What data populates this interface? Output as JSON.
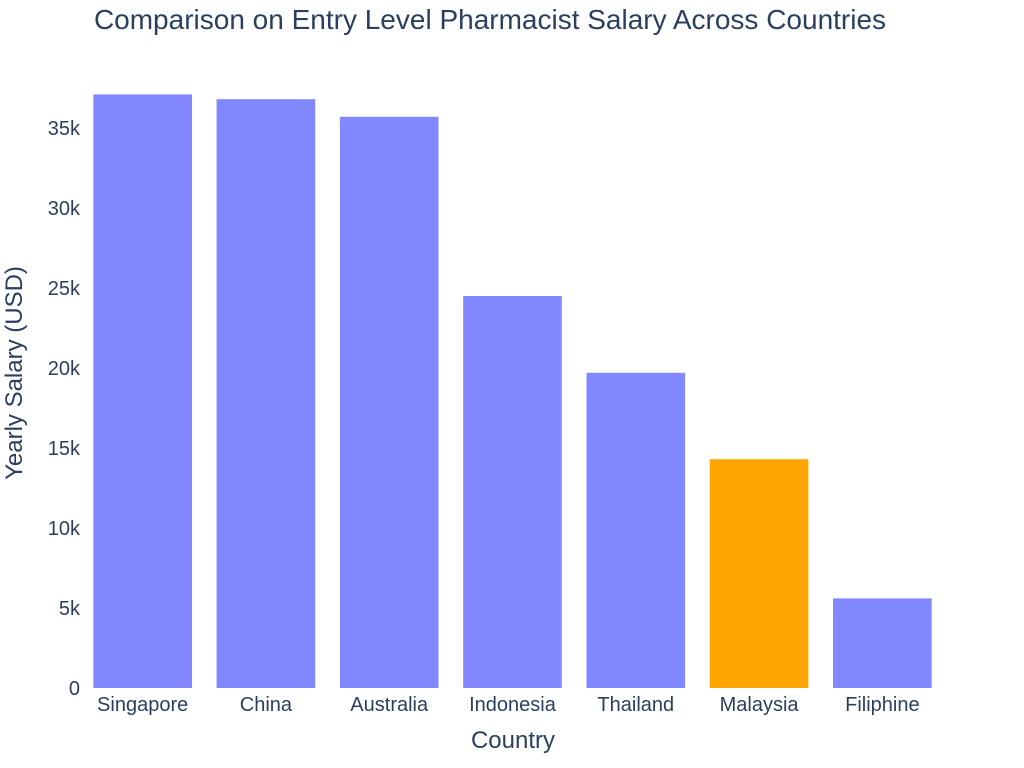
{
  "chart_data": {
    "type": "bar",
    "title": "Comparison on Entry Level Pharmacist Salary Across Countries",
    "xlabel": "Country",
    "ylabel": "Yearly Salary (USD)",
    "categories": [
      "Singapore",
      "China",
      "Australia",
      "Indonesia",
      "Thailand",
      "Malaysia",
      "Filiphine"
    ],
    "values": [
      37100,
      36800,
      35700,
      24500,
      19700,
      14300,
      5600
    ],
    "colors": [
      "#8187ff",
      "#8187ff",
      "#8187ff",
      "#8187ff",
      "#8187ff",
      "#ffa500",
      "#8187ff"
    ],
    "ylim": [
      0,
      38000
    ],
    "yticks": [
      0,
      5000,
      10000,
      15000,
      20000,
      25000,
      30000,
      35000
    ],
    "ytick_labels": [
      "0",
      "5k",
      "10k",
      "15k",
      "20k",
      "25k",
      "30k",
      "35k"
    ],
    "grid": false,
    "legend": false
  }
}
